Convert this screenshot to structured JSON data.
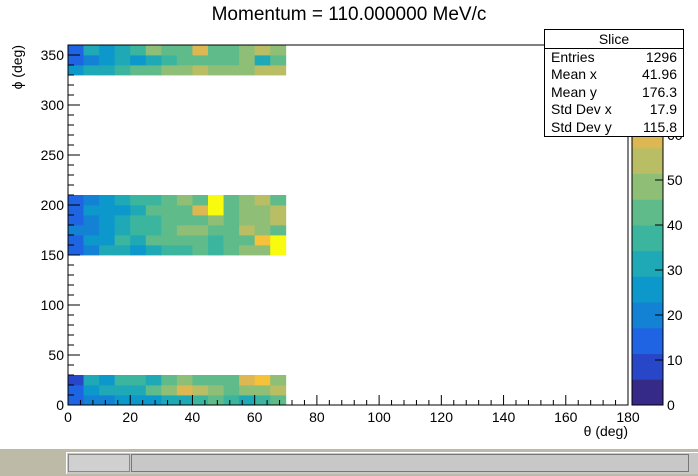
{
  "chart_data": {
    "type": "heatmap",
    "title": "Momentum = 110.000000 MeV/c",
    "xlabel": "θ (deg)",
    "ylabel": "ϕ (deg)",
    "xlim": [
      0,
      180
    ],
    "ylim": [
      0,
      360
    ],
    "zlim": [
      0,
      80
    ],
    "x_ticks": [
      0,
      20,
      40,
      60,
      80,
      100,
      120,
      140,
      160,
      180
    ],
    "y_ticks": [
      0,
      50,
      100,
      150,
      200,
      250,
      300,
      350
    ],
    "z_ticks": [
      0,
      10,
      20,
      30,
      40,
      50,
      60,
      70,
      80
    ],
    "x_ticklabels": [
      "0",
      "20",
      "40",
      "60",
      "80",
      "100",
      "120",
      "140",
      "160",
      "180"
    ],
    "y_ticklabels": [
      "0",
      "50",
      "100",
      "150",
      "200",
      "250",
      "300",
      "350"
    ],
    "z_ticklabels": [
      "0",
      "10",
      "20",
      "30",
      "40",
      "50",
      "60",
      "70",
      "80"
    ],
    "x_bin_width": 5,
    "y_bin_width": 10,
    "x_bin_starts": [
      0,
      5,
      10,
      15,
      20,
      25,
      30,
      35,
      40,
      45,
      50,
      55,
      60,
      65
    ],
    "y_bins": [
      {
        "y0": 0,
        "values": [
          16,
          20,
          22,
          24,
          26,
          28,
          30,
          34,
          38,
          40,
          36,
          34,
          38,
          40
        ]
      },
      {
        "y0": 10,
        "values": [
          12,
          26,
          32,
          30,
          34,
          40,
          48,
          58,
          52,
          46,
          42,
          50,
          48,
          52
        ]
      },
      {
        "y0": 20,
        "values": [
          10,
          30,
          28,
          36,
          38,
          34,
          40,
          48,
          42,
          40,
          44,
          62,
          64,
          46
        ]
      },
      {
        "y0": 150,
        "values": [
          14,
          20,
          30,
          32,
          28,
          34,
          38,
          36,
          40,
          38,
          44,
          50,
          48,
          78
        ]
      },
      {
        "y0": 160,
        "values": [
          12,
          24,
          26,
          36,
          34,
          40,
          44,
          42,
          44,
          38,
          40,
          42,
          68,
          80
        ]
      },
      {
        "y0": 170,
        "values": [
          18,
          22,
          28,
          30,
          38,
          36,
          42,
          48,
          46,
          40,
          42,
          54,
          48,
          44
        ]
      },
      {
        "y0": 180,
        "values": [
          16,
          22,
          26,
          32,
          36,
          38,
          40,
          44,
          42,
          46,
          44,
          48,
          50,
          52
        ]
      },
      {
        "y0": 190,
        "values": [
          14,
          24,
          28,
          26,
          34,
          40,
          42,
          42,
          62,
          80,
          44,
          46,
          48,
          56
        ]
      },
      {
        "y0": 200,
        "values": [
          12,
          22,
          26,
          30,
          36,
          38,
          44,
          46,
          42,
          80,
          40,
          48,
          52,
          42
        ]
      },
      {
        "y0": 330,
        "values": [
          24,
          30,
          32,
          36,
          40,
          44,
          46,
          50,
          52,
          48,
          46,
          50,
          54,
          52
        ]
      },
      {
        "y0": 340,
        "values": [
          14,
          20,
          28,
          30,
          26,
          34,
          38,
          40,
          44,
          40,
          42,
          46,
          30,
          42
        ]
      },
      {
        "y0": 350,
        "values": [
          12,
          32,
          28,
          30,
          38,
          46,
          40,
          42,
          58,
          44,
          42,
          48,
          52,
          50
        ]
      }
    ],
    "palette": [
      "#352a87",
      "#2747c8",
      "#1f65e3",
      "#1482d4",
      "#0d98cc",
      "#1fa8b6",
      "#3cb59f",
      "#5fbc8a",
      "#8fbf76",
      "#b9bd64",
      "#ddb752",
      "#f5c23a",
      "#f9e11d",
      "#f9fb0e"
    ]
  },
  "stats": {
    "title": "Slice",
    "rows": [
      {
        "label": "Entries",
        "value": "1296"
      },
      {
        "label": "Mean x",
        "value": "41.96"
      },
      {
        "label": "Mean y",
        "value": "176.3"
      },
      {
        "label": "Std Dev x",
        "value": "17.9"
      },
      {
        "label": "Std Dev y",
        "value": "115.8"
      }
    ]
  }
}
